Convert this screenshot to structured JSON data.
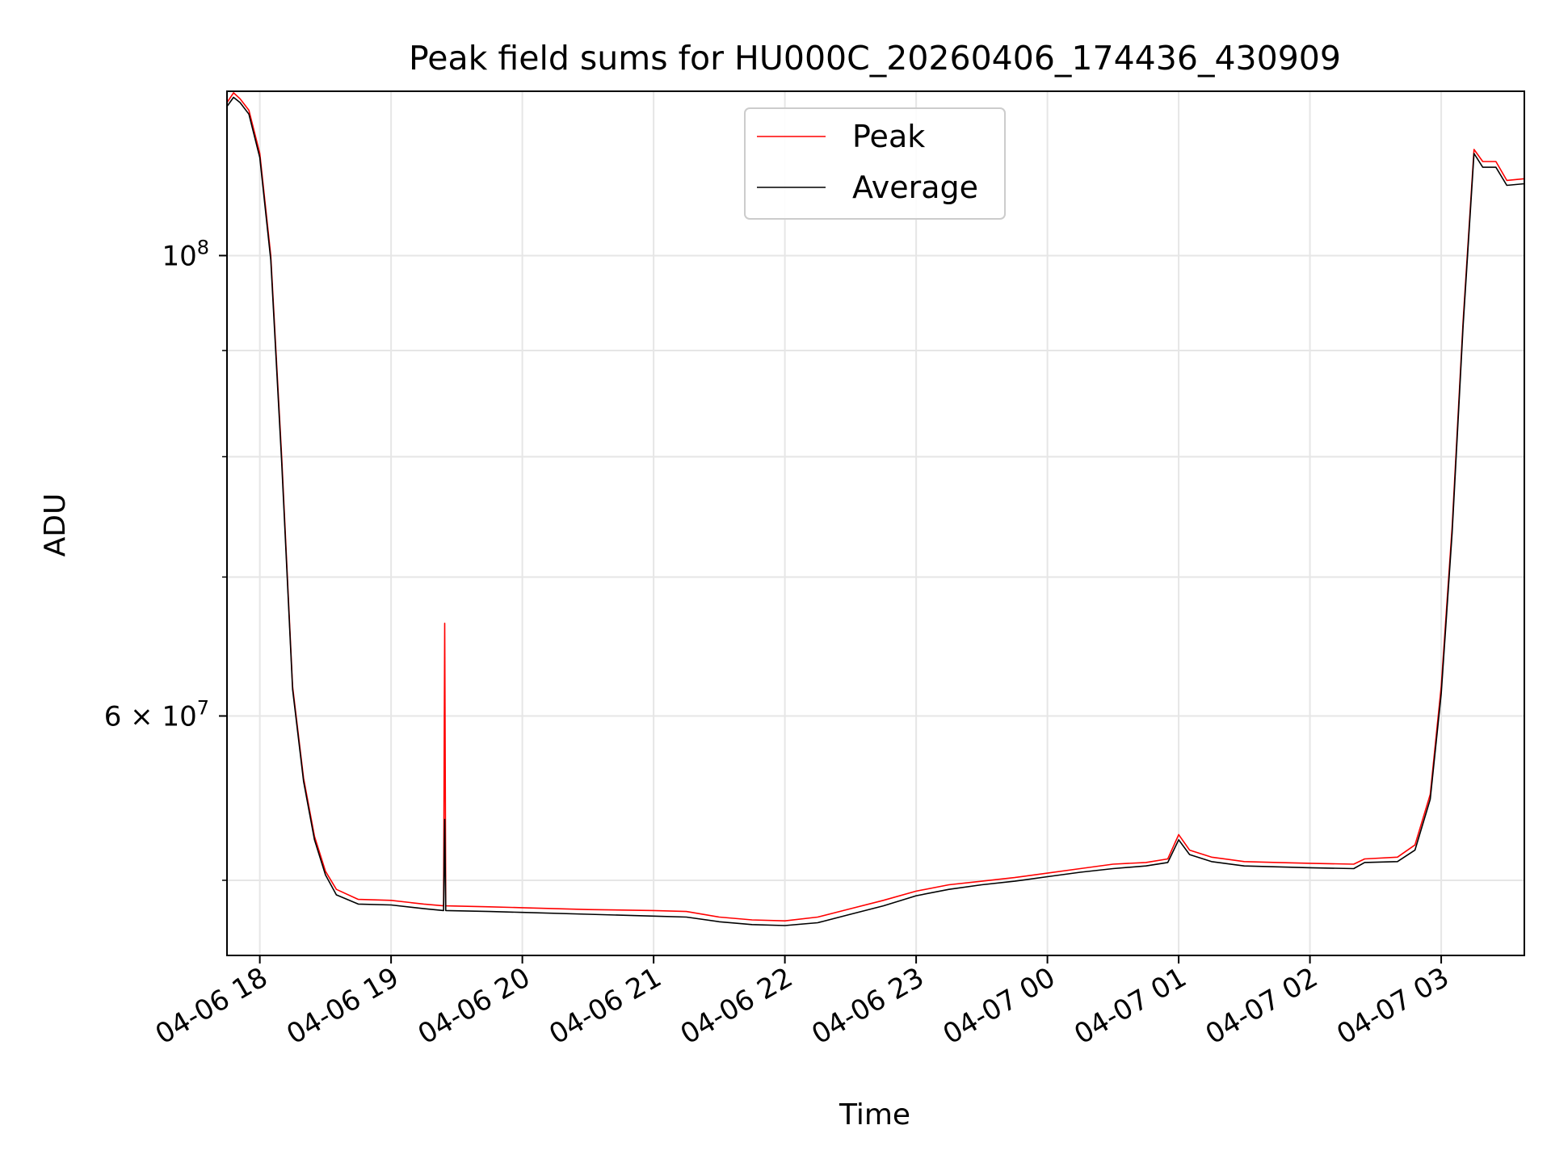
{
  "chart_data": {
    "type": "line",
    "title": "Peak field sums for HU000C_20260406_174436_430909",
    "xlabel": "Time",
    "ylabel": "ADU",
    "yscale": "log",
    "xlim": [
      "2026-04-06 17:45",
      "2026-04-07 03:38"
    ],
    "ylim": [
      46000000,
      120000000
    ],
    "x_ticks": [
      {
        "t": "2026-04-06 18:00",
        "label": "04-06 18"
      },
      {
        "t": "2026-04-06 19:00",
        "label": "04-06 19"
      },
      {
        "t": "2026-04-06 20:00",
        "label": "04-06 20"
      },
      {
        "t": "2026-04-06 21:00",
        "label": "04-06 21"
      },
      {
        "t": "2026-04-06 22:00",
        "label": "04-06 22"
      },
      {
        "t": "2026-04-06 23:00",
        "label": "04-06 23"
      },
      {
        "t": "2026-04-07 00:00",
        "label": "04-07 00"
      },
      {
        "t": "2026-04-07 01:00",
        "label": "04-07 01"
      },
      {
        "t": "2026-04-07 02:00",
        "label": "04-07 02"
      },
      {
        "t": "2026-04-07 03:00",
        "label": "04-07 03"
      }
    ],
    "y_ticks": [
      {
        "value": 100000000,
        "mant": "10",
        "exp": "8"
      },
      {
        "value": 60000000,
        "mant": "6 × 10",
        "exp": "7"
      }
    ],
    "y_minor_ticks": [
      50000000,
      70000000,
      80000000,
      90000000
    ],
    "grid": true,
    "legend_position": "top-center",
    "series": [
      {
        "name": "Peak",
        "color": "#ff0000",
        "points": [
          [
            "2026-04-06 17:45",
            118500000
          ],
          [
            "2026-04-06 17:48",
            119800000
          ],
          [
            "2026-04-06 17:51",
            119000000
          ],
          [
            "2026-04-06 17:55",
            117500000
          ],
          [
            "2026-04-06 18:00",
            112000000
          ],
          [
            "2026-04-06 18:05",
            100000000
          ],
          [
            "2026-04-06 18:10",
            80000000
          ],
          [
            "2026-04-06 18:15",
            62000000
          ],
          [
            "2026-04-06 18:20",
            56000000
          ],
          [
            "2026-04-06 18:25",
            52500000
          ],
          [
            "2026-04-06 18:30",
            50500000
          ],
          [
            "2026-04-06 18:35",
            49500000
          ],
          [
            "2026-04-06 18:45",
            48950000
          ],
          [
            "2026-04-06 19:00",
            48900000
          ],
          [
            "2026-04-06 19:15",
            48700000
          ],
          [
            "2026-04-06 19:24",
            48600000
          ],
          [
            "2026-04-06 19:24:30",
            66500000
          ],
          [
            "2026-04-06 19:25",
            48600000
          ],
          [
            "2026-04-06 19:45",
            48550000
          ],
          [
            "2026-04-06 20:00",
            48500000
          ],
          [
            "2026-04-06 20:30",
            48400000
          ],
          [
            "2026-04-06 21:00",
            48350000
          ],
          [
            "2026-04-06 21:15",
            48300000
          ],
          [
            "2026-04-06 21:30",
            48000000
          ],
          [
            "2026-04-06 21:45",
            47850000
          ],
          [
            "2026-04-06 22:00",
            47800000
          ],
          [
            "2026-04-06 22:15",
            48000000
          ],
          [
            "2026-04-06 22:30",
            48450000
          ],
          [
            "2026-04-06 22:45",
            48900000
          ],
          [
            "2026-04-06 23:00",
            49400000
          ],
          [
            "2026-04-06 23:15",
            49750000
          ],
          [
            "2026-04-06 23:30",
            49950000
          ],
          [
            "2026-04-06 23:45",
            50150000
          ],
          [
            "2026-04-07 00:00",
            50400000
          ],
          [
            "2026-04-07 00:15",
            50650000
          ],
          [
            "2026-04-07 00:30",
            50900000
          ],
          [
            "2026-04-07 00:45",
            51000000
          ],
          [
            "2026-04-07 00:55",
            51200000
          ],
          [
            "2026-04-07 01:00",
            52600000
          ],
          [
            "2026-04-07 01:05",
            51700000
          ],
          [
            "2026-04-07 01:15",
            51300000
          ],
          [
            "2026-04-07 01:30",
            51050000
          ],
          [
            "2026-04-07 01:45",
            51000000
          ],
          [
            "2026-04-07 02:00",
            50950000
          ],
          [
            "2026-04-07 02:20",
            50900000
          ],
          [
            "2026-04-07 02:25",
            51200000
          ],
          [
            "2026-04-07 02:40",
            51300000
          ],
          [
            "2026-04-07 02:48",
            52000000
          ],
          [
            "2026-04-07 02:55",
            55000000
          ],
          [
            "2026-04-07 03:00",
            62000000
          ],
          [
            "2026-04-07 03:05",
            74000000
          ],
          [
            "2026-04-07 03:10",
            93000000
          ],
          [
            "2026-04-07 03:15",
            112500000
          ],
          [
            "2026-04-07 03:19",
            111000000
          ],
          [
            "2026-04-07 03:25",
            111000000
          ],
          [
            "2026-04-07 03:30",
            108700000
          ],
          [
            "2026-04-07 03:38",
            108900000
          ]
        ]
      },
      {
        "name": "Average",
        "color": "#000000",
        "points": [
          [
            "2026-04-06 17:45",
            118000000
          ],
          [
            "2026-04-06 17:48",
            119200000
          ],
          [
            "2026-04-06 17:51",
            118500000
          ],
          [
            "2026-04-06 17:55",
            117000000
          ],
          [
            "2026-04-06 18:00",
            111500000
          ],
          [
            "2026-04-06 18:05",
            99500000
          ],
          [
            "2026-04-06 18:10",
            79500000
          ],
          [
            "2026-04-06 18:15",
            61800000
          ],
          [
            "2026-04-06 18:20",
            55800000
          ],
          [
            "2026-04-06 18:25",
            52300000
          ],
          [
            "2026-04-06 18:30",
            50300000
          ],
          [
            "2026-04-06 18:35",
            49200000
          ],
          [
            "2026-04-06 18:45",
            48700000
          ],
          [
            "2026-04-06 19:00",
            48650000
          ],
          [
            "2026-04-06 19:15",
            48450000
          ],
          [
            "2026-04-06 19:24",
            48350000
          ],
          [
            "2026-04-06 19:24:30",
            53500000
          ],
          [
            "2026-04-06 19:25",
            48350000
          ],
          [
            "2026-04-06 19:45",
            48300000
          ],
          [
            "2026-04-06 20:00",
            48250000
          ],
          [
            "2026-04-06 20:30",
            48150000
          ],
          [
            "2026-04-06 21:00",
            48050000
          ],
          [
            "2026-04-06 21:15",
            48000000
          ],
          [
            "2026-04-06 21:30",
            47750000
          ],
          [
            "2026-04-06 21:45",
            47600000
          ],
          [
            "2026-04-06 22:00",
            47550000
          ],
          [
            "2026-04-06 22:15",
            47700000
          ],
          [
            "2026-04-06 22:30",
            48150000
          ],
          [
            "2026-04-06 22:45",
            48600000
          ],
          [
            "2026-04-06 23:00",
            49150000
          ],
          [
            "2026-04-06 23:15",
            49500000
          ],
          [
            "2026-04-06 23:30",
            49750000
          ],
          [
            "2026-04-06 23:45",
            49950000
          ],
          [
            "2026-04-07 00:00",
            50200000
          ],
          [
            "2026-04-07 00:15",
            50450000
          ],
          [
            "2026-04-07 00:30",
            50650000
          ],
          [
            "2026-04-07 00:45",
            50800000
          ],
          [
            "2026-04-07 00:55",
            51000000
          ],
          [
            "2026-04-07 01:00",
            52300000
          ],
          [
            "2026-04-07 01:05",
            51450000
          ],
          [
            "2026-04-07 01:15",
            51050000
          ],
          [
            "2026-04-07 01:30",
            50800000
          ],
          [
            "2026-04-07 01:45",
            50750000
          ],
          [
            "2026-04-07 02:00",
            50700000
          ],
          [
            "2026-04-07 02:20",
            50650000
          ],
          [
            "2026-04-07 02:25",
            51000000
          ],
          [
            "2026-04-07 02:40",
            51050000
          ],
          [
            "2026-04-07 02:48",
            51700000
          ],
          [
            "2026-04-07 02:55",
            54700000
          ],
          [
            "2026-04-07 03:00",
            61500000
          ],
          [
            "2026-04-07 03:05",
            73500000
          ],
          [
            "2026-04-07 03:10",
            92500000
          ],
          [
            "2026-04-07 03:15",
            112000000
          ],
          [
            "2026-04-07 03:19",
            110300000
          ],
          [
            "2026-04-07 03:25",
            110300000
          ],
          [
            "2026-04-07 03:30",
            108100000
          ],
          [
            "2026-04-07 03:38",
            108300000
          ]
        ]
      }
    ]
  }
}
